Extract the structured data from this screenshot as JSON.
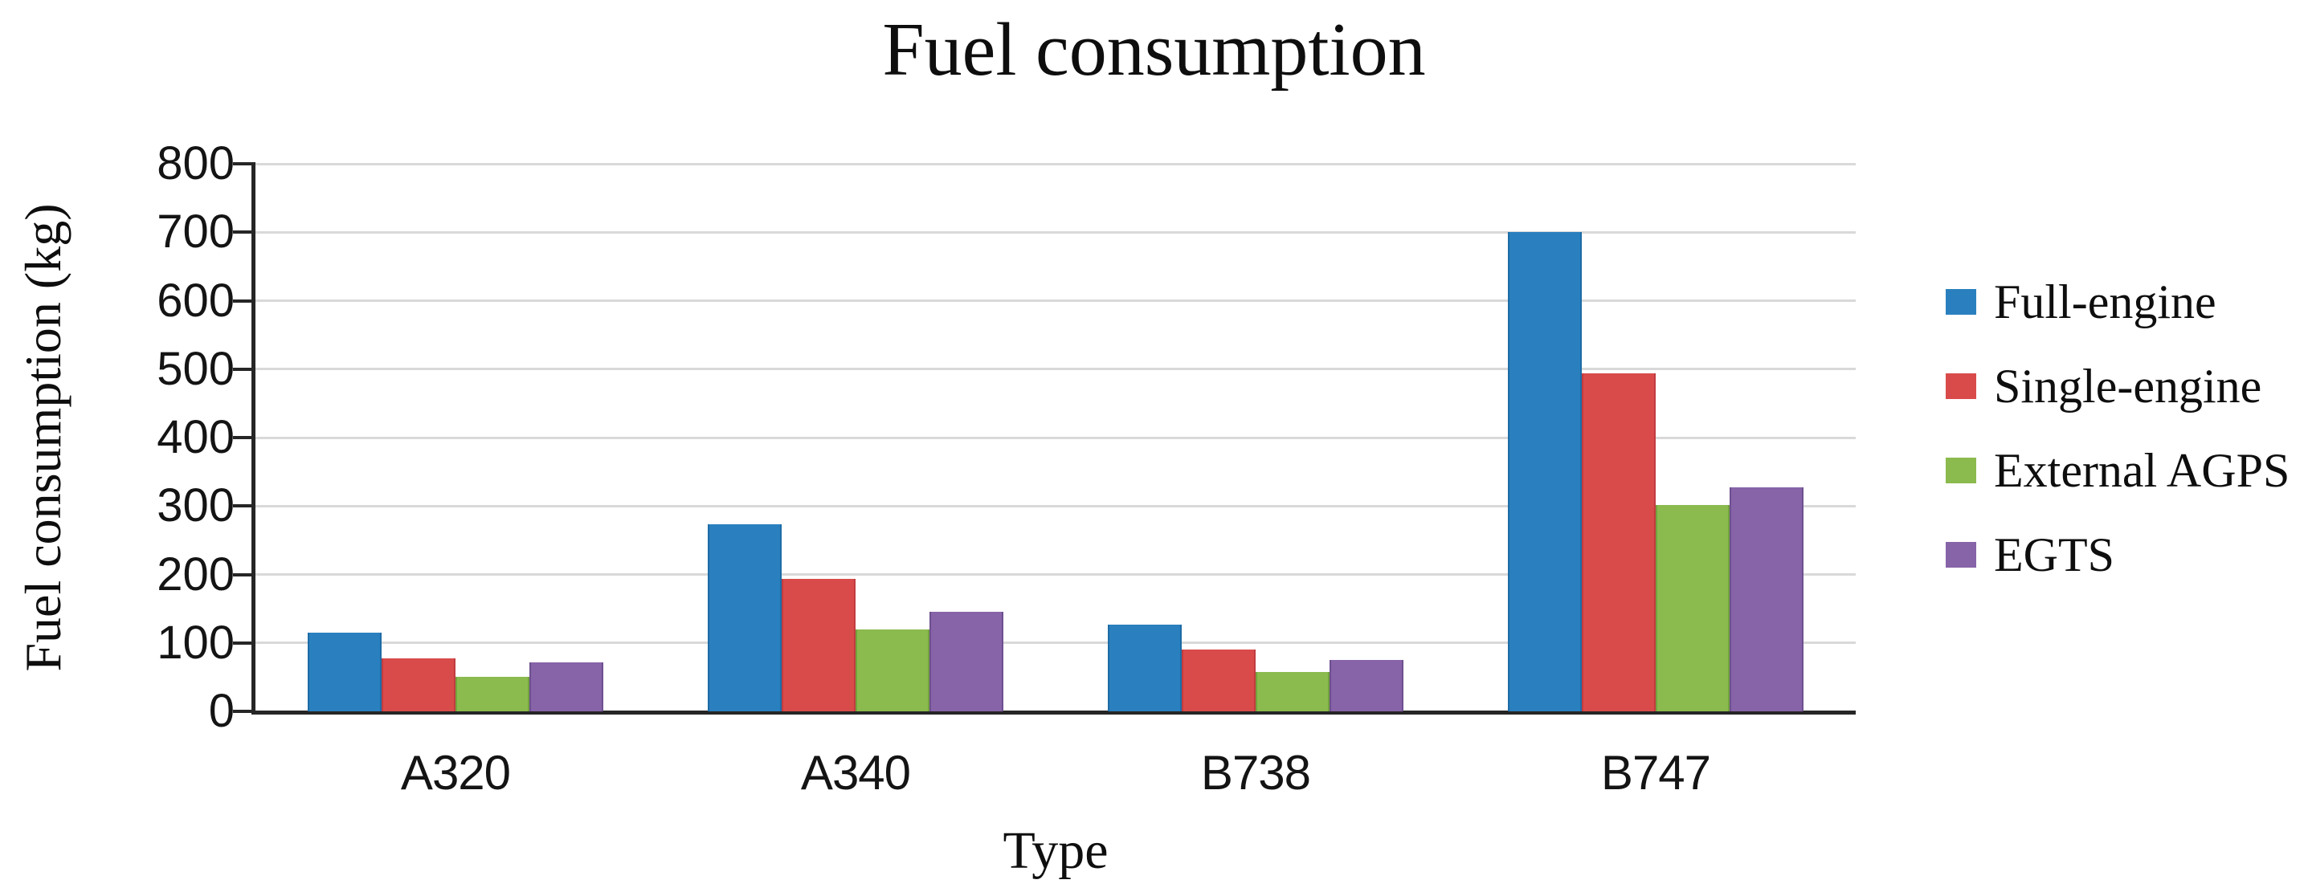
{
  "title": "Fuel consumption",
  "axes": {
    "y_title": "Fuel consumption (kg)",
    "x_title": "Type",
    "y_ticks": [
      0,
      100,
      200,
      300,
      400,
      500,
      600,
      700,
      800
    ]
  },
  "legend": {
    "position": "right",
    "items": [
      "Full-engine",
      "Single-engine",
      "External AGPS",
      "EGTS"
    ]
  },
  "colors": {
    "gridline": "#d9d9d9",
    "axis": "#262626",
    "text": "#0e0e0e"
  },
  "chart_data": {
    "type": "bar",
    "title": "Fuel consumption",
    "xlabel": "Type",
    "ylabel": "Fuel consumption (kg)",
    "ylim": [
      0,
      800
    ],
    "y_tick_step": 100,
    "grid": true,
    "legend_position": "right",
    "categories": [
      "A320",
      "A340",
      "B738",
      "B747"
    ],
    "series": [
      {
        "name": "Full-engine",
        "color": "#2A80BE",
        "edge": "#1D6CA6",
        "values": [
          115,
          273,
          127,
          700
        ]
      },
      {
        "name": "Single-engine",
        "color": "#D94B4A",
        "edge": "#C13C3F",
        "values": [
          78,
          193,
          90,
          494
        ]
      },
      {
        "name": "External AGPS",
        "color": "#8BBA4E",
        "edge": "#73A33E",
        "values": [
          50,
          120,
          57,
          302
        ]
      },
      {
        "name": "EGTS",
        "color": "#8763A8",
        "edge": "#6E5090",
        "values": [
          72,
          146,
          75,
          327
        ]
      }
    ]
  }
}
